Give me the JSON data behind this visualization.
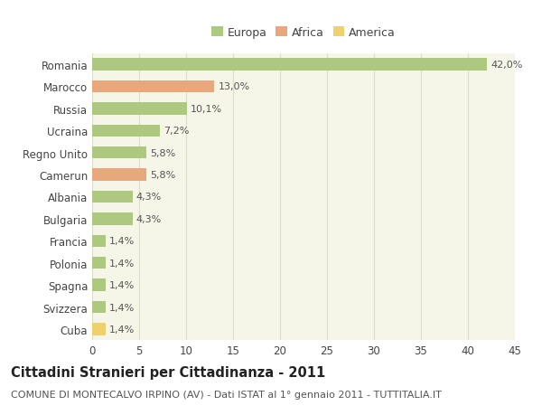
{
  "categories": [
    "Romania",
    "Marocco",
    "Russia",
    "Ucraina",
    "Regno Unito",
    "Camerun",
    "Albania",
    "Bulgaria",
    "Francia",
    "Polonia",
    "Spagna",
    "Svizzera",
    "Cuba"
  ],
  "values": [
    42.0,
    13.0,
    10.1,
    7.2,
    5.8,
    5.8,
    4.3,
    4.3,
    1.4,
    1.4,
    1.4,
    1.4,
    1.4
  ],
  "labels": [
    "42,0%",
    "13,0%",
    "10,1%",
    "7,2%",
    "5,8%",
    "5,8%",
    "4,3%",
    "4,3%",
    "1,4%",
    "1,4%",
    "1,4%",
    "1,4%",
    "1,4%"
  ],
  "continent": [
    "Europa",
    "Africa",
    "Europa",
    "Europa",
    "Europa",
    "Africa",
    "Europa",
    "Europa",
    "Europa",
    "Europa",
    "Europa",
    "Europa",
    "America"
  ],
  "colors": {
    "Europa": "#adc97f",
    "Africa": "#e8a87c",
    "America": "#f0d06a"
  },
  "title": "Cittadini Stranieri per Cittadinanza - 2011",
  "subtitle": "COMUNE DI MONTECALVO IRPINO (AV) - Dati ISTAT al 1° gennaio 2011 - TUTTITALIA.IT",
  "xlim": [
    0,
    45
  ],
  "xticks": [
    0,
    5,
    10,
    15,
    20,
    25,
    30,
    35,
    40,
    45
  ],
  "background_color": "#ffffff",
  "plot_bg_color": "#f5f5e8",
  "grid_color": "#ddddcc",
  "bar_height": 0.55,
  "title_fontsize": 10.5,
  "subtitle_fontsize": 8,
  "tick_fontsize": 8.5,
  "label_fontsize": 8
}
